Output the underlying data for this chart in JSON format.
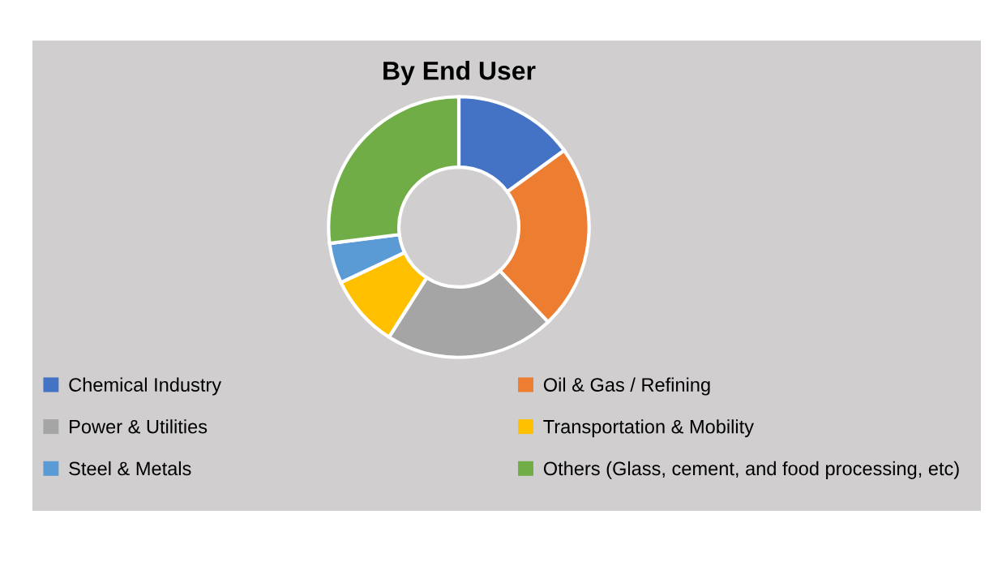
{
  "chart_data": {
    "type": "donut",
    "title": "By End User",
    "categories": [
      "Chemical Industry",
      "Oil & Gas / Refining",
      "Power & Utilities",
      "Transportation & Mobility",
      "Steel & Metals",
      "Others (Glass, cement, and food processing, etc)"
    ],
    "values": [
      15,
      23,
      21,
      9,
      5,
      27
    ],
    "colors": [
      "#4472c4",
      "#ed7d31",
      "#a5a5a5",
      "#ffc000",
      "#5b9bd5",
      "#70ad47"
    ],
    "legend": "bottom"
  }
}
